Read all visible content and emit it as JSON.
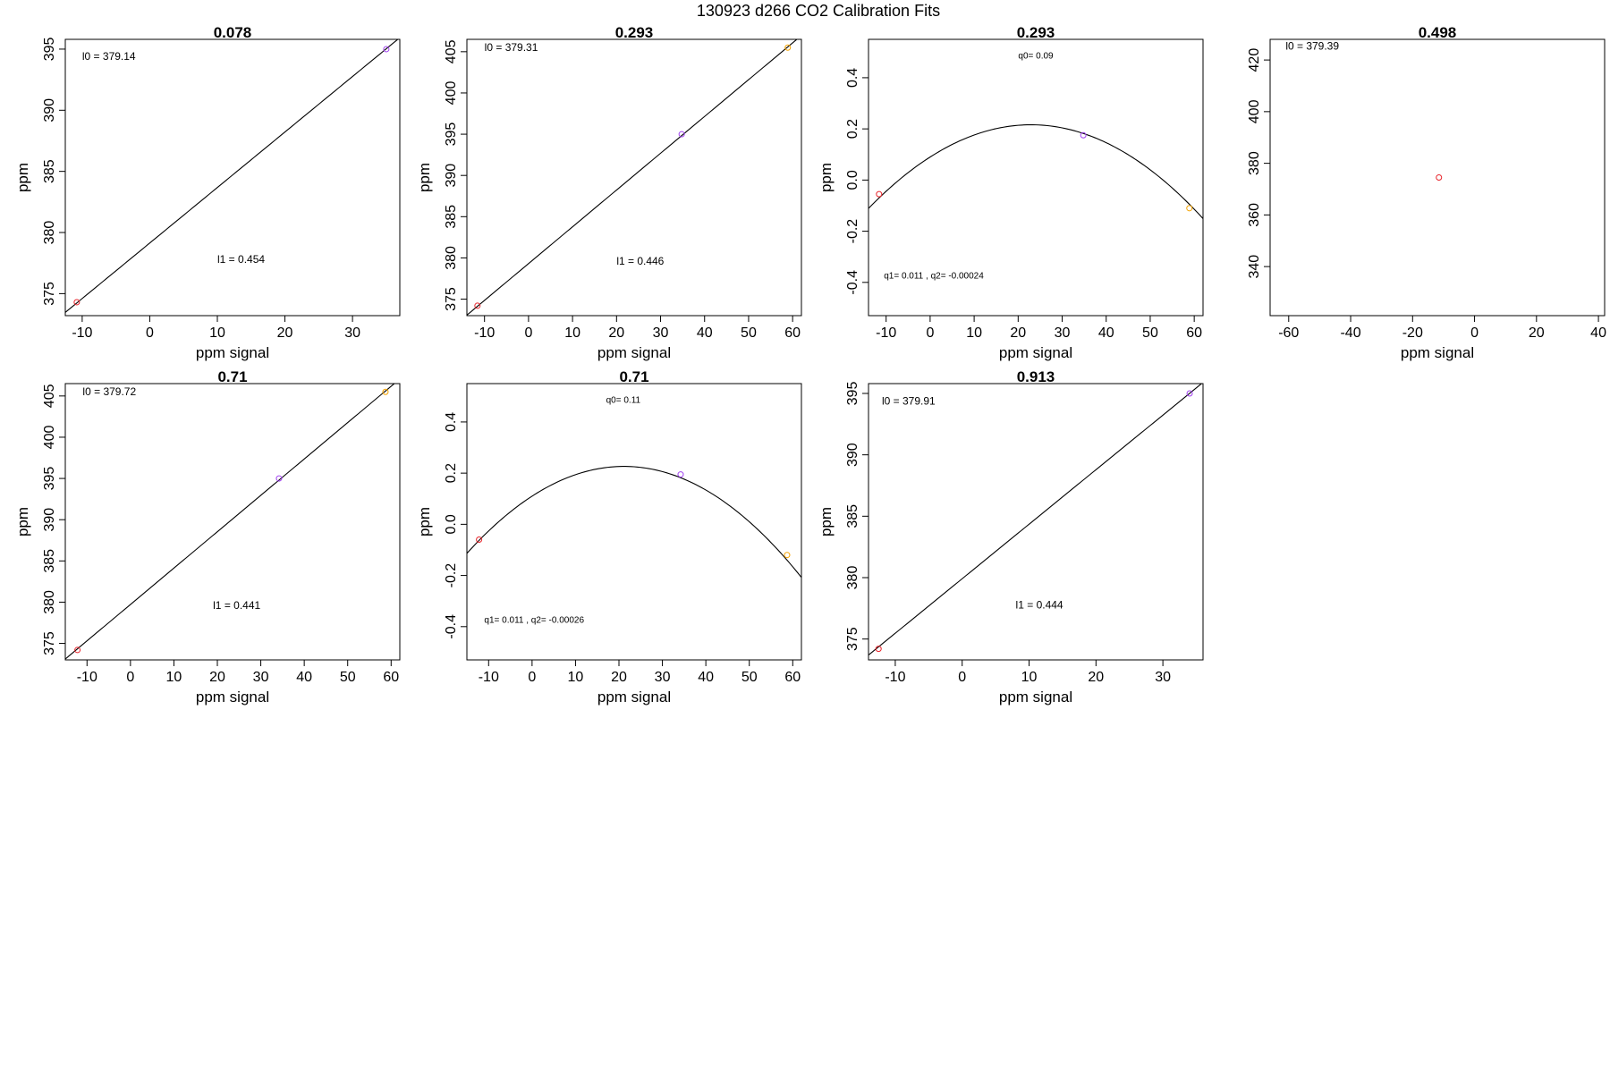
{
  "figure": {
    "title": "130923   d266   CO2 Calibration Fits"
  },
  "colors": {
    "frame": "#000000",
    "fit_line": "#000000",
    "point_red": "#e8232a",
    "point_purple": "#a040f0",
    "point_orange": "#f5a300"
  },
  "chart_data": [
    {
      "type": "scatter",
      "title": "0.078",
      "xlabel": "ppm signal",
      "ylabel": "ppm",
      "xlim": [
        -12.5,
        37
      ],
      "ylim": [
        373.2,
        395.8
      ],
      "xticks": [
        -10,
        0,
        10,
        20,
        30
      ],
      "yticks": [
        375,
        380,
        385,
        390,
        395
      ],
      "points": [
        {
          "x": -10.8,
          "y": 374.3,
          "color": "red"
        },
        {
          "x": 35,
          "y": 395,
          "color": "purple"
        }
      ],
      "fit": {
        "kind": "linear",
        "intercept": 379.14,
        "slope": 0.454
      },
      "annotations": [
        {
          "text": "l0 =  379.14",
          "x": -10,
          "y": 394.1
        },
        {
          "text": "l1 =  0.454",
          "x": 10,
          "y": 377.5
        }
      ]
    },
    {
      "type": "scatter",
      "title": "0.293",
      "xlabel": "ppm signal",
      "ylabel": "ppm",
      "xlim": [
        -14,
        62
      ],
      "ylim": [
        373,
        406.5
      ],
      "xticks": [
        -10,
        0,
        10,
        20,
        30,
        40,
        50,
        60
      ],
      "yticks": [
        375,
        380,
        385,
        390,
        395,
        400,
        405
      ],
      "points": [
        {
          "x": -11.6,
          "y": 374.2,
          "color": "red"
        },
        {
          "x": 34.8,
          "y": 395,
          "color": "purple"
        },
        {
          "x": 58.9,
          "y": 405.5,
          "color": "orange"
        }
      ],
      "fit": {
        "kind": "linear",
        "intercept": 379.31,
        "slope": 0.446
      },
      "annotations": [
        {
          "text": "l0 =  379.31",
          "x": -10,
          "y": 405.1
        },
        {
          "text": "l1 =  0.446",
          "x": 20,
          "y": 379.2
        }
      ]
    },
    {
      "type": "scatter",
      "title": "0.293",
      "xlabel": "ppm signal",
      "ylabel": "ppm",
      "xlim": [
        -14,
        62
      ],
      "ylim": [
        -0.53,
        0.55
      ],
      "xticks": [
        -10,
        0,
        10,
        20,
        30,
        40,
        50,
        60
      ],
      "yticks": [
        -0.4,
        -0.2,
        0.0,
        0.2,
        0.4
      ],
      "points": [
        {
          "x": -11.6,
          "y": -0.055,
          "color": "red"
        },
        {
          "x": 34.8,
          "y": 0.175,
          "color": "purple"
        },
        {
          "x": 58.9,
          "y": -0.11,
          "color": "orange"
        }
      ],
      "fit": {
        "kind": "quadratic",
        "q0": 0.09,
        "q1": 0.011,
        "q2": -0.00024
      },
      "annotations": [
        {
          "text": "q0= 0.09",
          "x": 24,
          "y": 0.475
        },
        {
          "text": "q1= 0.011 , q2= -0.00024",
          "x": -10.5,
          "y": -0.385
        }
      ]
    },
    {
      "type": "scatter",
      "title": "0.498",
      "xlabel": "ppm signal",
      "ylabel": "",
      "xlim": [
        -66,
        42
      ],
      "ylim": [
        321,
        428
      ],
      "xticks": [
        -60,
        -40,
        -20,
        0,
        20,
        40
      ],
      "yticks": [
        340,
        360,
        380,
        400,
        420
      ],
      "points": [
        {
          "x": -11.5,
          "y": 374.5,
          "color": "red"
        }
      ],
      "annotations": [
        {
          "text": "l0 =  379.39",
          "x": -61,
          "y": 424
        }
      ]
    },
    {
      "type": "scatter",
      "title": "0.71",
      "xlabel": "ppm signal",
      "ylabel": "ppm",
      "xlim": [
        -15,
        62
      ],
      "ylim": [
        373,
        406.5
      ],
      "xticks": [
        -10,
        0,
        10,
        20,
        30,
        40,
        50,
        60
      ],
      "yticks": [
        375,
        380,
        385,
        390,
        395,
        400,
        405
      ],
      "points": [
        {
          "x": -12.2,
          "y": 374.2,
          "color": "red"
        },
        {
          "x": 34.2,
          "y": 395,
          "color": "purple"
        },
        {
          "x": 58.7,
          "y": 405.5,
          "color": "orange"
        }
      ],
      "fit": {
        "kind": "linear",
        "intercept": 379.72,
        "slope": 0.441
      },
      "annotations": [
        {
          "text": "l0 =  379.72",
          "x": -11,
          "y": 405.1
        },
        {
          "text": "l1 =  0.441",
          "x": 19,
          "y": 379.2
        }
      ]
    },
    {
      "type": "scatter",
      "title": "0.71",
      "xlabel": "ppm signal",
      "ylabel": "ppm",
      "xlim": [
        -15,
        62
      ],
      "ylim": [
        -0.53,
        0.55
      ],
      "xticks": [
        -10,
        0,
        10,
        20,
        30,
        40,
        50,
        60
      ],
      "yticks": [
        -0.4,
        -0.2,
        0.0,
        0.2,
        0.4
      ],
      "points": [
        {
          "x": -12.2,
          "y": -0.06,
          "color": "red"
        },
        {
          "x": 34.2,
          "y": 0.195,
          "color": "purple"
        },
        {
          "x": 58.7,
          "y": -0.12,
          "color": "orange"
        }
      ],
      "fit": {
        "kind": "quadratic",
        "q0": 0.11,
        "q1": 0.011,
        "q2": -0.00026
      },
      "annotations": [
        {
          "text": "q0= 0.11",
          "x": 21,
          "y": 0.475
        },
        {
          "text": "q1= 0.011 , q2= -0.00026",
          "x": -11,
          "y": -0.385
        }
      ]
    },
    {
      "type": "scatter",
      "title": "0.913",
      "xlabel": "ppm signal",
      "ylabel": "ppm",
      "xlim": [
        -14,
        36
      ],
      "ylim": [
        373.3,
        395.8
      ],
      "xticks": [
        -10,
        0,
        10,
        20,
        30
      ],
      "yticks": [
        375,
        380,
        385,
        390,
        395
      ],
      "points": [
        {
          "x": -12.5,
          "y": 374.2,
          "color": "red"
        },
        {
          "x": 34,
          "y": 395,
          "color": "purple"
        }
      ],
      "fit": {
        "kind": "linear",
        "intercept": 379.91,
        "slope": 0.444
      },
      "annotations": [
        {
          "text": "l0 =  379.91",
          "x": -12,
          "y": 394.1
        },
        {
          "text": "l1 =  0.444",
          "x": 8,
          "y": 377.5
        }
      ]
    }
  ]
}
